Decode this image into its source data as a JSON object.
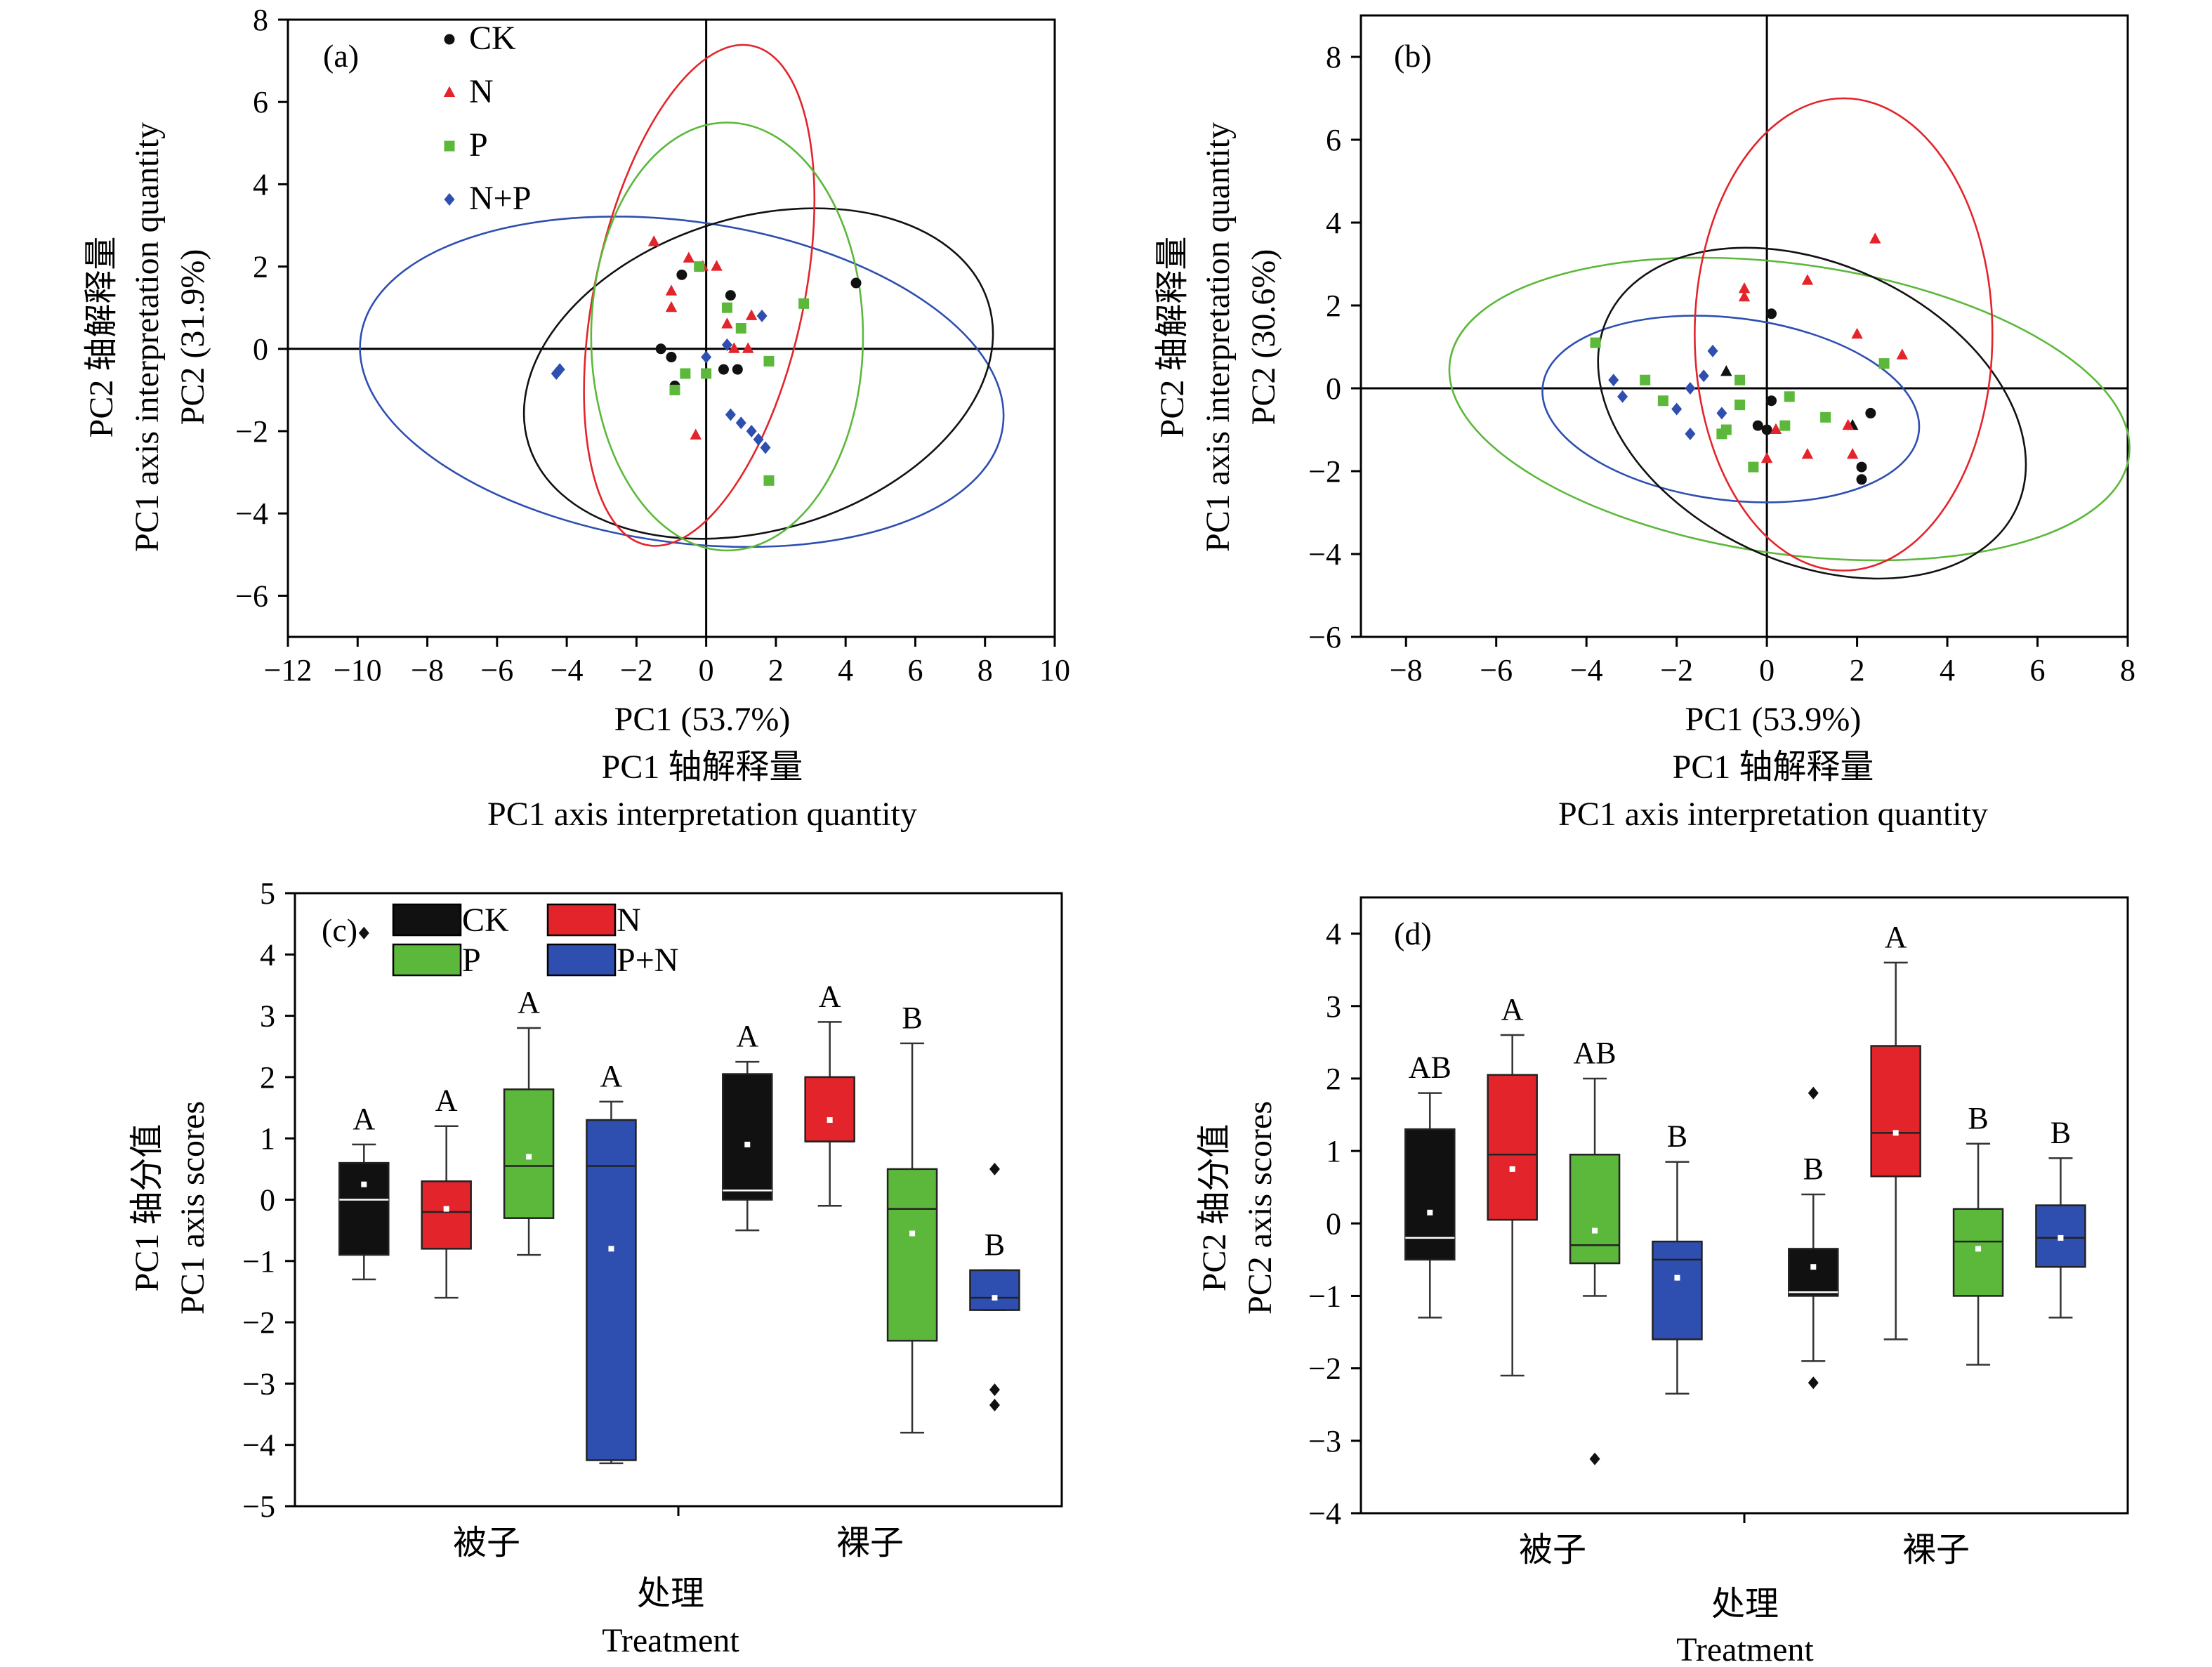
{
  "colors": {
    "CK": "#111111",
    "N": "#e3242b",
    "P": "#5cb83a",
    "NP": "#2e4fb0",
    "line": "#555555"
  },
  "chart_data": [
    {
      "panel": "(a)",
      "type": "scatter",
      "xlabel": [
        "PC1 (53.7%)",
        "PC1 轴解释量",
        "PC1 axis interpretation quantity"
      ],
      "ylabel": [
        "PC2 轴解释量",
        "PC1 axis interpretation quantity",
        "PC2 (31.9%)"
      ],
      "xlim": [
        -12,
        10
      ],
      "ylim": [
        -7,
        8
      ],
      "xticks": [
        -12,
        -10,
        -8,
        -6,
        -4,
        -2,
        0,
        2,
        4,
        6,
        8,
        10
      ],
      "yticks": [
        -6,
        -4,
        -2,
        0,
        2,
        4,
        6,
        8
      ],
      "legend": {
        "placement": "top-left",
        "entries": [
          "CK",
          "N",
          "P",
          "N+P"
        ]
      },
      "series": [
        {
          "name": "CK",
          "marker": "circle",
          "color": "#111111",
          "points": [
            [
              -0.7,
              1.8
            ],
            [
              -1.3,
              0.0
            ],
            [
              -1.0,
              -0.2
            ],
            [
              -0.9,
              -0.9
            ],
            [
              0.7,
              1.3
            ],
            [
              0.5,
              -0.5
            ],
            [
              0.9,
              -0.5
            ],
            [
              4.3,
              1.6
            ]
          ]
        },
        {
          "name": "N",
          "marker": "triangle",
          "color": "#e3242b",
          "points": [
            [
              -1.5,
              2.6
            ],
            [
              -0.5,
              2.2
            ],
            [
              -0.1,
              2.0
            ],
            [
              0.3,
              2.0
            ],
            [
              -1.0,
              1.4
            ],
            [
              -1.0,
              1.0
            ],
            [
              0.6,
              0.6
            ],
            [
              1.3,
              0.8
            ],
            [
              0.8,
              0.0
            ],
            [
              1.2,
              0.0
            ],
            [
              -0.3,
              -2.1
            ]
          ]
        },
        {
          "name": "P",
          "marker": "square",
          "color": "#5cb83a",
          "points": [
            [
              -0.2,
              2.0
            ],
            [
              0.6,
              1.0
            ],
            [
              2.8,
              1.1
            ],
            [
              1.0,
              0.5
            ],
            [
              1.8,
              -0.3
            ],
            [
              -0.6,
              -0.6
            ],
            [
              0.0,
              -0.6
            ],
            [
              -0.9,
              -1.0
            ],
            [
              1.8,
              -3.2
            ]
          ]
        },
        {
          "name": "N+P",
          "marker": "diamond",
          "color": "#2e4fb0",
          "points": [
            [
              -4.2,
              -0.5
            ],
            [
              -4.3,
              -0.6
            ],
            [
              1.6,
              0.8
            ],
            [
              0.6,
              0.1
            ],
            [
              0.0,
              -0.2
            ],
            [
              0.7,
              -1.6
            ],
            [
              1.0,
              -1.8
            ],
            [
              1.3,
              -2.0
            ],
            [
              1.5,
              -2.2
            ],
            [
              1.7,
              -2.4
            ]
          ]
        }
      ],
      "ellipses": [
        {
          "series": "N+P",
          "cx": -0.7,
          "cy": -0.8,
          "rx": 9.3,
          "ry": 3.9,
          "angle": -8
        },
        {
          "series": "CK",
          "cx": 1.5,
          "cy": -0.6,
          "rx": 6.9,
          "ry": 3.8,
          "angle": 17
        },
        {
          "series": "N",
          "cx": -0.2,
          "cy": 1.3,
          "rx": 3.0,
          "ry": 6.2,
          "angle": -12
        },
        {
          "series": "P",
          "cx": 0.6,
          "cy": 0.3,
          "rx": 3.9,
          "ry": 5.2,
          "angle": 0
        }
      ]
    },
    {
      "panel": "(b)",
      "type": "scatter",
      "xlabel": [
        "PC1 (53.9%)",
        "PC1 轴解释量",
        "PC1 axis interpretation quantity"
      ],
      "ylabel": [
        "PC2 轴解释量",
        "PC1 axis interpretation quantity",
        "PC2 (30.6%)"
      ],
      "xlim": [
        -9,
        8
      ],
      "ylim": [
        -6,
        9
      ],
      "xticks": [
        -8,
        -6,
        -4,
        -2,
        0,
        2,
        4,
        6,
        8
      ],
      "yticks": [
        -6,
        -4,
        -2,
        0,
        2,
        4,
        6,
        8
      ],
      "series": [
        {
          "name": "CK",
          "marker": "circle",
          "color": "#111111",
          "points": [
            [
              0.1,
              1.8
            ],
            [
              0.1,
              -0.3
            ],
            [
              -0.2,
              -0.9
            ],
            [
              0.0,
              -1.0
            ],
            [
              2.3,
              -0.6
            ],
            [
              2.1,
              -1.9
            ],
            [
              2.1,
              -2.2
            ]
          ]
        },
        {
          "name": "CK-tri",
          "marker": "triangle",
          "color": "#111111",
          "points": [
            [
              -0.9,
              0.4
            ],
            [
              1.9,
              -0.9
            ]
          ]
        },
        {
          "name": "N",
          "marker": "triangle",
          "color": "#e3242b",
          "points": [
            [
              -0.5,
              2.2
            ],
            [
              -0.5,
              2.4
            ],
            [
              2.4,
              3.6
            ],
            [
              0.9,
              2.6
            ],
            [
              2.0,
              1.3
            ],
            [
              3.0,
              0.8
            ],
            [
              0.9,
              -1.6
            ],
            [
              1.8,
              -0.9
            ],
            [
              1.9,
              -1.6
            ],
            [
              0.2,
              -1.0
            ],
            [
              0.0,
              -1.7
            ]
          ]
        },
        {
          "name": "P",
          "marker": "square",
          "color": "#5cb83a",
          "points": [
            [
              -3.8,
              1.1
            ],
            [
              -2.7,
              0.2
            ],
            [
              -2.3,
              -0.3
            ],
            [
              -0.6,
              0.2
            ],
            [
              -0.6,
              -0.4
            ],
            [
              0.5,
              -0.2
            ],
            [
              1.3,
              -0.7
            ],
            [
              2.6,
              0.6
            ],
            [
              0.4,
              -0.9
            ],
            [
              -0.9,
              -1.0
            ],
            [
              -0.3,
              -1.9
            ],
            [
              -1.0,
              -1.1
            ]
          ]
        },
        {
          "name": "N+P",
          "marker": "diamond",
          "color": "#2e4fb0",
          "points": [
            [
              -1.2,
              0.9
            ],
            [
              -1.4,
              0.3
            ],
            [
              -1.7,
              0.0
            ],
            [
              -3.4,
              0.2
            ],
            [
              -3.2,
              -0.2
            ],
            [
              -2.0,
              -0.5
            ],
            [
              -1.0,
              -0.6
            ],
            [
              -1.7,
              -1.1
            ]
          ]
        }
      ],
      "ellipses": [
        {
          "series": "P",
          "cx": 0.5,
          "cy": -0.5,
          "rx": 7.6,
          "ry": 3.5,
          "angle": -8
        },
        {
          "series": "N+P",
          "cx": -0.8,
          "cy": -0.5,
          "rx": 4.2,
          "ry": 2.2,
          "angle": -7
        },
        {
          "series": "CK",
          "cx": 1.0,
          "cy": -0.6,
          "rx": 5.0,
          "ry": 3.6,
          "angle": -25
        },
        {
          "series": "N",
          "cx": 1.7,
          "cy": 1.3,
          "rx": 3.3,
          "ry": 5.7,
          "angle": 0
        }
      ]
    },
    {
      "panel": "(c)",
      "type": "box",
      "ylabel": [
        "PC1 轴分值",
        "PC1  axis scores"
      ],
      "xlabel": [
        "处理",
        "Treatment"
      ],
      "ylim": [
        -5,
        5
      ],
      "yticks": [
        -5,
        -4,
        -3,
        -2,
        -1,
        0,
        1,
        2,
        3,
        4,
        5
      ],
      "categories": [
        "被子",
        "裸子"
      ],
      "legend": {
        "placement": "top-left",
        "entries": [
          "CK",
          "N",
          "P",
          "P+N"
        ]
      },
      "groups": [
        {
          "category": "被子",
          "series": "CK",
          "min": -1.3,
          "q1": -0.9,
          "median": 0.0,
          "q3": 0.6,
          "max": 0.9,
          "mean": 0.25,
          "outliers": [
            4.35
          ],
          "sig": "A"
        },
        {
          "category": "被子",
          "series": "N",
          "min": -1.6,
          "q1": -0.8,
          "median": -0.2,
          "q3": 0.3,
          "max": 1.2,
          "mean": -0.15,
          "outliers": [],
          "sig": "A"
        },
        {
          "category": "被子",
          "series": "P",
          "min": -0.9,
          "q1": -0.3,
          "median": 0.55,
          "q3": 1.8,
          "max": 2.8,
          "mean": 0.7,
          "outliers": [],
          "sig": "A"
        },
        {
          "category": "被子",
          "series": "NP",
          "min": -4.3,
          "q1": -4.25,
          "median": 0.55,
          "q3": 1.3,
          "max": 1.6,
          "mean": -0.8,
          "outliers": [],
          "sig": "A"
        },
        {
          "category": "裸子",
          "series": "CK",
          "min": -0.5,
          "q1": 0.0,
          "median": 0.15,
          "q3": 2.05,
          "max": 2.25,
          "mean": 0.9,
          "outliers": [],
          "sig": "A"
        },
        {
          "category": "裸子",
          "series": "N",
          "min": -0.1,
          "q1": 0.95,
          "median": 0.95,
          "q3": 2.0,
          "max": 2.9,
          "mean": 1.3,
          "outliers": [],
          "sig": "A"
        },
        {
          "category": "裸子",
          "series": "P",
          "min": -3.8,
          "q1": -2.3,
          "median": -0.15,
          "q3": 0.5,
          "max": 2.55,
          "mean": -0.55,
          "outliers": [],
          "sig": "B"
        },
        {
          "category": "裸子",
          "series": "NP",
          "min": -1.8,
          "q1": -1.8,
          "median": -1.6,
          "q3": -1.15,
          "max": -1.15,
          "mean": -1.6,
          "outliers": [
            0.5,
            -3.1,
            -3.35
          ],
          "sig": "B"
        }
      ]
    },
    {
      "panel": "(d)",
      "type": "box",
      "ylabel": [
        "PC2 轴分值",
        "PC2  axis scores"
      ],
      "xlabel": [
        "处理",
        "Treatment"
      ],
      "ylim": [
        -4,
        4.5
      ],
      "yticks": [
        -4,
        -3,
        -2,
        -1,
        0,
        1,
        2,
        3,
        4
      ],
      "categories": [
        "被子",
        "裸子"
      ],
      "groups": [
        {
          "category": "被子",
          "series": "CK",
          "min": -1.3,
          "q1": -0.5,
          "median": -0.2,
          "q3": 1.3,
          "max": 1.8,
          "mean": 0.15,
          "outliers": [],
          "sig": "AB"
        },
        {
          "category": "被子",
          "series": "N",
          "min": -2.1,
          "q1": 0.05,
          "median": 0.95,
          "q3": 2.05,
          "max": 2.6,
          "mean": 0.75,
          "outliers": [],
          "sig": "A"
        },
        {
          "category": "被子",
          "series": "P",
          "min": -1.0,
          "q1": -0.55,
          "median": -0.3,
          "q3": 0.95,
          "max": 2.0,
          "mean": -0.1,
          "outliers": [
            -3.25
          ],
          "sig": "AB"
        },
        {
          "category": "被子",
          "series": "NP",
          "min": -2.35,
          "q1": -1.6,
          "median": -0.5,
          "q3": -0.25,
          "max": 0.85,
          "mean": -0.75,
          "outliers": [],
          "sig": "B"
        },
        {
          "category": "裸子",
          "series": "CK",
          "min": -1.9,
          "q1": -1.0,
          "median": -0.95,
          "q3": -0.35,
          "max": 0.4,
          "mean": -0.6,
          "outliers": [
            1.8,
            -2.2
          ],
          "sig": "B"
        },
        {
          "category": "裸子",
          "series": "N",
          "min": -1.6,
          "q1": 0.65,
          "median": 1.25,
          "q3": 2.45,
          "max": 3.6,
          "mean": 1.25,
          "outliers": [],
          "sig": "A"
        },
        {
          "category": "裸子",
          "series": "P",
          "min": -1.95,
          "q1": -1.0,
          "median": -0.25,
          "q3": 0.2,
          "max": 1.1,
          "mean": -0.35,
          "outliers": [],
          "sig": "B"
        },
        {
          "category": "裸子",
          "series": "NP",
          "min": -1.3,
          "q1": -0.6,
          "median": -0.2,
          "q3": 0.25,
          "max": 0.9,
          "mean": -0.2,
          "outliers": [],
          "sig": "B"
        }
      ]
    }
  ]
}
